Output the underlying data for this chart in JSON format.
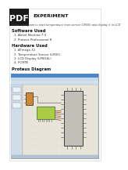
{
  "title_label": "EXPERIMENT",
  "aim_text": "Write a program to read temperature from sensor (LM35) and display it in LCD",
  "software_title": "Software Used",
  "software_items": [
    "Atmel Montino 7.0",
    "Proteus Professional 8"
  ],
  "hardware_title": "Hardware Used",
  "hardware_items": [
    "ATmega 32",
    "Temperature Sensor (LM35)",
    "LCD Display (LM016L)",
    "PORTB"
  ],
  "proteus_title": "Proteus Diagram",
  "bg_color": "#ffffff",
  "pdf_badge_bg": "#1a1a1a",
  "pdf_badge_text": "PDF",
  "text_color": "#333333",
  "heading_color": "#111111",
  "aim_color": "#444444",
  "window_title_bar": "#4a86c8",
  "window_menu_bar": "#c5d9e8",
  "window_toolbar": "#d0e0ed",
  "window_left_panel": "#d0dce8",
  "canvas_color": "#e8e4d8",
  "canvas_grid": "#d8d4c8",
  "lcd_color": "#aacc44",
  "chip_color": "#c0c0b8",
  "sensor_color": "#cc8833",
  "wire_color": "#555555",
  "status_bar": "#b0c0d0"
}
